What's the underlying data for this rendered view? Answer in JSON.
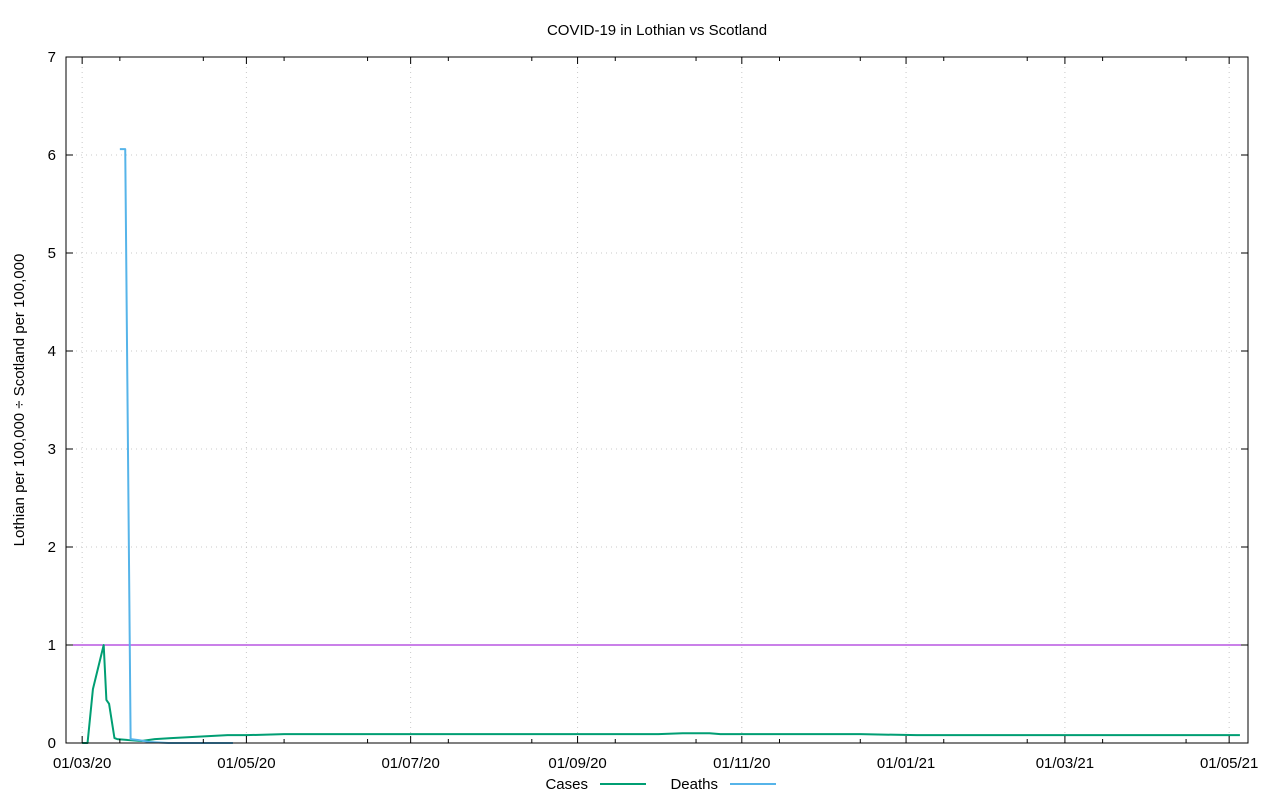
{
  "chart_data": {
    "type": "line",
    "title": "COVID-19 in Lothian vs Scotland",
    "xlabel": "",
    "ylabel": "Lothian per 100,000 ÷ Scotland per 100,000",
    "x_type": "date",
    "xlim": [
      "2020-02-24",
      "2021-05-08"
    ],
    "ylim": [
      0,
      7
    ],
    "x_ticks": [
      {
        "date": "2020-03-01",
        "label": "01/03/20"
      },
      {
        "date": "2020-05-01",
        "label": "01/05/20"
      },
      {
        "date": "2020-07-01",
        "label": "01/07/20"
      },
      {
        "date": "2020-09-01",
        "label": "01/09/20"
      },
      {
        "date": "2020-11-01",
        "label": "01/11/20"
      },
      {
        "date": "2021-01-01",
        "label": "01/01/21"
      },
      {
        "date": "2021-03-01",
        "label": "01/03/21"
      },
      {
        "date": "2021-05-01",
        "label": "01/05/21"
      }
    ],
    "y_ticks": [
      0,
      1,
      2,
      3,
      4,
      5,
      6,
      7
    ],
    "grid": true,
    "legend_position": "bottom-center",
    "reference_line": {
      "y": 1,
      "color": "#9400d3"
    },
    "series": [
      {
        "name": "Cases",
        "color": "#009e73",
        "points": [
          [
            "2020-03-01",
            0.0
          ],
          [
            "2020-03-03",
            0.0
          ],
          [
            "2020-03-05",
            0.55
          ],
          [
            "2020-03-09",
            1.0
          ],
          [
            "2020-03-10",
            0.44
          ],
          [
            "2020-03-11",
            0.4
          ],
          [
            "2020-03-13",
            0.05
          ],
          [
            "2020-03-14",
            0.04
          ],
          [
            "2020-03-18",
            0.03
          ],
          [
            "2020-03-23",
            0.02
          ],
          [
            "2020-03-28",
            0.04
          ],
          [
            "2020-04-03",
            0.05
          ],
          [
            "2020-04-10",
            0.06
          ],
          [
            "2020-04-17",
            0.07
          ],
          [
            "2020-04-24",
            0.08
          ],
          [
            "2020-05-01",
            0.08
          ],
          [
            "2020-05-15",
            0.09
          ],
          [
            "2020-06-15",
            0.09
          ],
          [
            "2020-07-15",
            0.09
          ],
          [
            "2020-08-15",
            0.09
          ],
          [
            "2020-09-15",
            0.09
          ],
          [
            "2020-10-01",
            0.09
          ],
          [
            "2020-10-10",
            0.1
          ],
          [
            "2020-10-20",
            0.1
          ],
          [
            "2020-10-24",
            0.09
          ],
          [
            "2020-11-15",
            0.09
          ],
          [
            "2020-12-15",
            0.09
          ],
          [
            "2021-01-05",
            0.08
          ],
          [
            "2021-02-01",
            0.08
          ],
          [
            "2021-03-01",
            0.08
          ],
          [
            "2021-04-01",
            0.08
          ],
          [
            "2021-05-05",
            0.08
          ]
        ]
      },
      {
        "name": "Deaths",
        "color": "#56b4e9",
        "points": [
          [
            "2020-03-15",
            6.06
          ],
          [
            "2020-03-17",
            6.06
          ],
          [
            "2020-03-19",
            0.04
          ],
          [
            "2020-03-22",
            0.03
          ],
          [
            "2020-03-26",
            0.01
          ],
          [
            "2020-04-02",
            0.0
          ],
          [
            "2020-04-15",
            0.0
          ],
          [
            "2020-04-26",
            0.0
          ]
        ]
      }
    ]
  }
}
